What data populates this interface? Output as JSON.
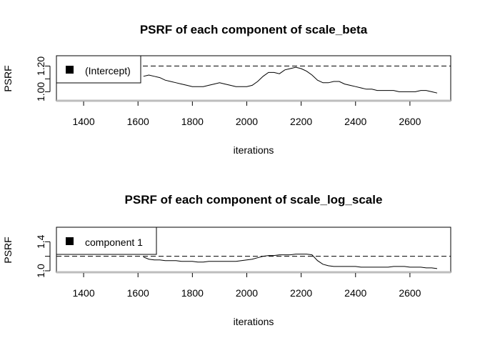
{
  "chart_data": [
    {
      "type": "line",
      "title": "PSRF of each component of scale_beta",
      "xlabel": "iterations",
      "ylabel": "PSRF",
      "xlim": [
        1300,
        2750
      ],
      "ylim": [
        0.93,
        1.28
      ],
      "xticks": [
        1400,
        1600,
        1800,
        2000,
        2200,
        2400,
        2600
      ],
      "xtick_labels": [
        "1400",
        "1600",
        "1800",
        "2000",
        "2200",
        "2400",
        "2600"
      ],
      "yticks": [
        1.0,
        1.1,
        1.2
      ],
      "ytick_labels": [
        "1.00",
        "",
        "1.20"
      ],
      "reference_line": 1.2,
      "legend_position": "top-left",
      "series": [
        {
          "name": "(Intercept)",
          "x": [
            1620,
            1640,
            1660,
            1680,
            1700,
            1720,
            1740,
            1760,
            1780,
            1800,
            1820,
            1840,
            1860,
            1880,
            1900,
            1920,
            1940,
            1960,
            1980,
            2000,
            2020,
            2040,
            2060,
            2080,
            2100,
            2120,
            2140,
            2160,
            2180,
            2200,
            2220,
            2240,
            2260,
            2280,
            2300,
            2320,
            2340,
            2360,
            2380,
            2400,
            2420,
            2440,
            2460,
            2480,
            2500,
            2520,
            2540,
            2560,
            2580,
            2600,
            2620,
            2640,
            2660,
            2680,
            2700
          ],
          "values": [
            1.12,
            1.13,
            1.12,
            1.11,
            1.09,
            1.08,
            1.07,
            1.06,
            1.05,
            1.04,
            1.04,
            1.04,
            1.05,
            1.06,
            1.07,
            1.06,
            1.05,
            1.04,
            1.04,
            1.04,
            1.05,
            1.08,
            1.12,
            1.15,
            1.15,
            1.14,
            1.17,
            1.18,
            1.19,
            1.18,
            1.16,
            1.13,
            1.09,
            1.07,
            1.07,
            1.08,
            1.08,
            1.06,
            1.05,
            1.04,
            1.03,
            1.02,
            1.02,
            1.01,
            1.01,
            1.01,
            1.01,
            1.0,
            1.0,
            1.0,
            1.0,
            1.01,
            1.01,
            1.0,
            0.99
          ]
        }
      ]
    },
    {
      "type": "line",
      "title": "PSRF of each component of scale_log_scale",
      "xlabel": "iterations",
      "ylabel": "PSRF",
      "xlim": [
        1300,
        2750
      ],
      "ylim": [
        0.98,
        1.6
      ],
      "xticks": [
        1400,
        1600,
        1800,
        2000,
        2200,
        2400,
        2600
      ],
      "xtick_labels": [
        "1400",
        "1600",
        "1800",
        "2000",
        "2200",
        "2400",
        "2600"
      ],
      "yticks": [
        1.0,
        1.2,
        1.4
      ],
      "ytick_labels": [
        "1.0",
        "",
        "1.4"
      ],
      "reference_line": 1.2,
      "legend_position": "top-left",
      "series": [
        {
          "name": "component 1",
          "x": [
            1620,
            1640,
            1660,
            1680,
            1700,
            1720,
            1740,
            1760,
            1780,
            1800,
            1820,
            1840,
            1860,
            1880,
            1900,
            1920,
            1940,
            1960,
            1980,
            2000,
            2020,
            2040,
            2060,
            2080,
            2100,
            2120,
            2140,
            2160,
            2180,
            2200,
            2220,
            2240,
            2260,
            2280,
            2300,
            2320,
            2340,
            2360,
            2380,
            2400,
            2420,
            2440,
            2460,
            2480,
            2500,
            2520,
            2540,
            2560,
            2580,
            2600,
            2620,
            2640,
            2660,
            2680,
            2700
          ],
          "values": [
            1.19,
            1.16,
            1.15,
            1.15,
            1.14,
            1.14,
            1.14,
            1.13,
            1.13,
            1.13,
            1.12,
            1.12,
            1.13,
            1.13,
            1.13,
            1.13,
            1.13,
            1.13,
            1.14,
            1.15,
            1.16,
            1.18,
            1.2,
            1.21,
            1.21,
            1.22,
            1.22,
            1.22,
            1.23,
            1.23,
            1.23,
            1.22,
            1.14,
            1.09,
            1.07,
            1.06,
            1.06,
            1.06,
            1.06,
            1.06,
            1.05,
            1.05,
            1.05,
            1.05,
            1.05,
            1.05,
            1.06,
            1.06,
            1.06,
            1.05,
            1.05,
            1.05,
            1.04,
            1.04,
            1.03
          ]
        }
      ]
    }
  ]
}
